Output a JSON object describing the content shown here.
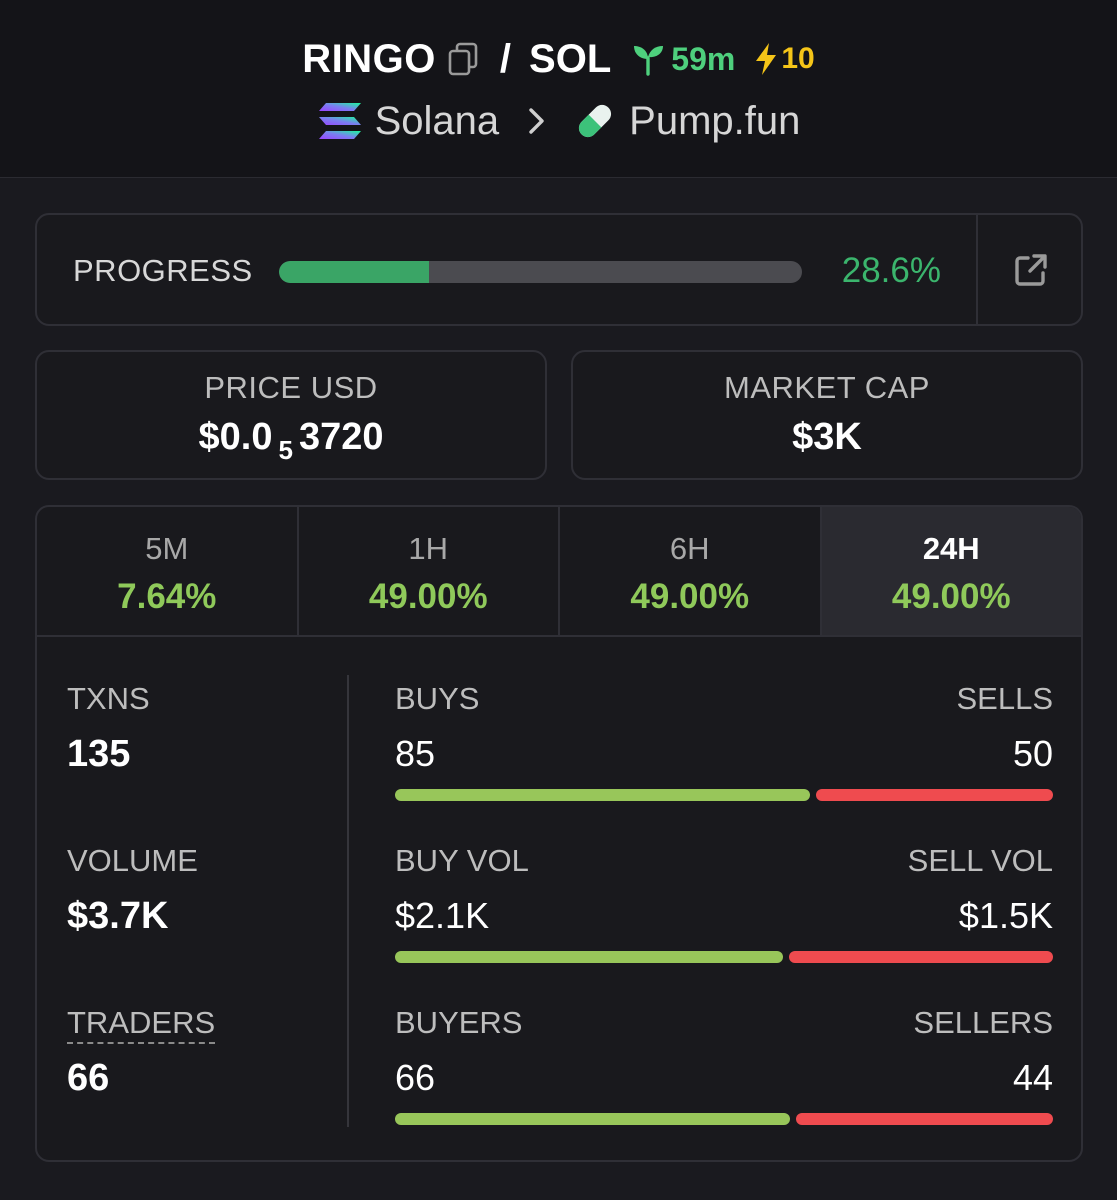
{
  "header": {
    "symbol": "RINGO",
    "separator": "/",
    "quote": "SOL",
    "age": "59m",
    "boosts": "10",
    "chain": "Solana",
    "dex": "Pump.fun",
    "colors": {
      "age": "#4ed07d",
      "boost": "#f5c518"
    }
  },
  "progress": {
    "label": "PROGRESS",
    "value_text": "28.6%",
    "fraction": 0.286,
    "color": "#3aa566"
  },
  "price": {
    "label": "PRICE USD",
    "prefix": "$0.0",
    "zeros": "5",
    "digits": "3720"
  },
  "market_cap": {
    "label": "MARKET CAP",
    "value": "$3K"
  },
  "tabs": [
    {
      "label": "5M",
      "change": "7.64%",
      "active": false
    },
    {
      "label": "1H",
      "change": "49.00%",
      "active": false
    },
    {
      "label": "6H",
      "change": "49.00%",
      "active": false
    },
    {
      "label": "24H",
      "change": "49.00%",
      "active": true
    }
  ],
  "metrics": {
    "txns": {
      "label": "TXNS",
      "value": "135"
    },
    "volume": {
      "label": "VOLUME",
      "value": "$3.7K"
    },
    "traders": {
      "label": "TRADERS",
      "value": "66"
    }
  },
  "splits": {
    "txns": {
      "left_label": "BUYS",
      "right_label": "SELLS",
      "left_value": "85",
      "right_value": "50",
      "buy_fraction": 0.63
    },
    "volume": {
      "left_label": "BUY VOL",
      "right_label": "SELL VOL",
      "left_value": "$2.1K",
      "right_value": "$1.5K",
      "buy_fraction": 0.59
    },
    "traders": {
      "left_label": "BUYERS",
      "right_label": "SELLERS",
      "left_value": "66",
      "right_value": "44",
      "buy_fraction": 0.6
    }
  },
  "colors": {
    "positive": "#8fc95a",
    "buy_bar": "#98c65a",
    "sell_bar": "#ef4b4f"
  },
  "icons": [
    "copy-icon",
    "seedling-icon",
    "bolt-icon",
    "solana-icon",
    "chevron-right-icon",
    "pill-icon",
    "external-link-icon"
  ]
}
